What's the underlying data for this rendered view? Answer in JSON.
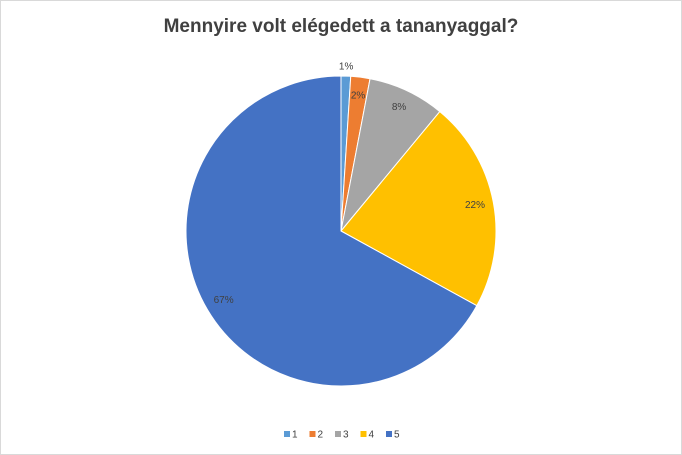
{
  "chart_data": {
    "type": "pie",
    "title": "Mennyire volt elégedett a tananyaggal?",
    "categories": [
      "1",
      "2",
      "3",
      "4",
      "5"
    ],
    "values": [
      1,
      2,
      8,
      22,
      67
    ],
    "value_labels": [
      "1%",
      "2%",
      "8%",
      "22%",
      "67%"
    ],
    "colors": [
      "#5b9bd5",
      "#ed7d31",
      "#a5a5a5",
      "#ffc000",
      "#4472c4"
    ],
    "legend": "bottom"
  }
}
